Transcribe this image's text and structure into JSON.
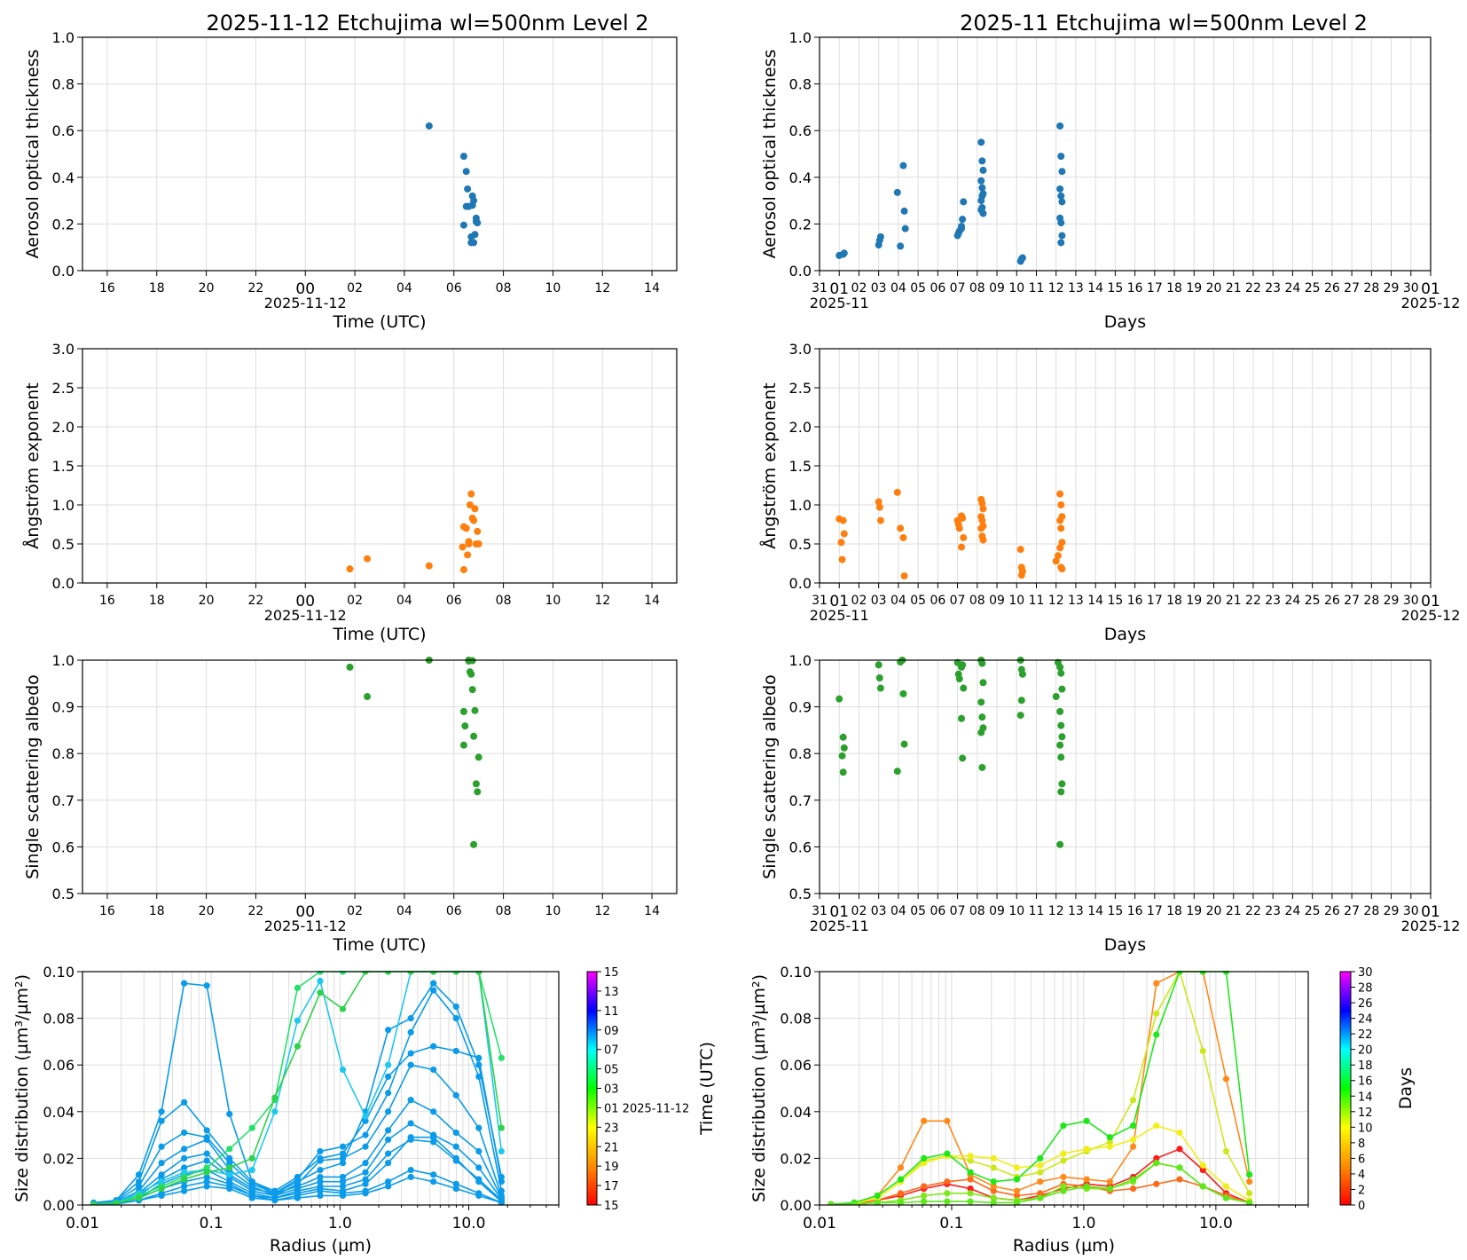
{
  "colors": {
    "aot": "#1f77b4",
    "angstrom": "#ff7f0e",
    "ssa": "#2ca02c"
  },
  "day_panel": {
    "titles": [
      "2025-11-12  Etchujima  wl=500nm  Level 2"
    ],
    "hour_ticks": [
      "16",
      "18",
      "20",
      "22",
      "00",
      "02",
      "04",
      "06",
      "08",
      "10",
      "12",
      "14"
    ],
    "date_label": "2025-11-12",
    "xlabel": "Time (UTC)"
  },
  "month_panel": {
    "titles": [
      "2025-11  Etchujima  wl=500nm  Level 2"
    ],
    "day_ticks": [
      "31",
      "01",
      "02",
      "03",
      "04",
      "05",
      "06",
      "07",
      "08",
      "09",
      "10",
      "11",
      "12",
      "13",
      "14",
      "15",
      "16",
      "17",
      "18",
      "19",
      "20",
      "21",
      "22",
      "23",
      "24",
      "25",
      "26",
      "27",
      "28",
      "29",
      "30",
      "01"
    ],
    "start_label": "2025-11",
    "end_label": "2025-12",
    "xlabel": "Days"
  },
  "chart_data": [
    {
      "id": "day_aot",
      "type": "scatter",
      "ylabel": "Aerosol optical thickness",
      "ylim": [
        0,
        1.0
      ],
      "yticks": [
        "0.0",
        "0.2",
        "0.4",
        "0.6",
        "0.8",
        "1.0"
      ],
      "x_hours_utc": [
        5.0,
        6.4,
        6.5,
        6.55,
        6.6,
        6.7,
        6.75,
        6.8,
        6.85,
        6.9,
        6.95,
        6.7,
        6.8,
        6.5,
        6.4,
        6.9,
        6.75
      ],
      "y": [
        0.62,
        0.49,
        0.425,
        0.35,
        0.275,
        0.12,
        0.32,
        0.3,
        0.155,
        0.225,
        0.205,
        0.145,
        0.12,
        0.275,
        0.195,
        0.21,
        0.28
      ]
    },
    {
      "id": "month_aot",
      "type": "scatter",
      "ylabel": "Aerosol optical thickness",
      "ylim": [
        0,
        1.0
      ],
      "yticks": [
        "0.0",
        "0.2",
        "0.4",
        "0.6",
        "0.8",
        "1.0"
      ],
      "x_day": [
        1.0,
        1.2,
        1.25,
        3.0,
        3.05,
        3.1,
        3.95,
        4.1,
        4.25,
        4.3,
        4.35,
        7.0,
        7.05,
        7.1,
        7.2,
        7.25,
        7.3,
        7.2,
        8.2,
        8.25,
        8.3,
        8.2,
        8.25,
        8.3,
        8.2,
        8.25,
        8.3,
        8.2,
        8.25,
        10.2,
        10.25,
        10.3,
        12.2,
        12.25,
        12.3,
        12.2,
        12.25,
        12.3,
        12.2,
        12.25,
        12.3,
        12.25
      ],
      "y": [
        0.065,
        0.07,
        0.075,
        0.11,
        0.13,
        0.145,
        0.335,
        0.105,
        0.45,
        0.255,
        0.18,
        0.15,
        0.16,
        0.17,
        0.18,
        0.22,
        0.295,
        0.19,
        0.55,
        0.47,
        0.43,
        0.385,
        0.355,
        0.33,
        0.3,
        0.27,
        0.245,
        0.26,
        0.32,
        0.04,
        0.05,
        0.055,
        0.62,
        0.49,
        0.425,
        0.35,
        0.32,
        0.295,
        0.225,
        0.205,
        0.15,
        0.12
      ]
    },
    {
      "id": "day_angstrom",
      "type": "scatter",
      "ylabel": "Ångström exponent",
      "ylim": [
        0,
        3.0
      ],
      "yticks": [
        "0.0",
        "0.5",
        "1.0",
        "1.5",
        "2.0",
        "2.5",
        "3.0"
      ],
      "x_hours_utc": [
        1.8,
        2.5,
        5.0,
        6.35,
        6.4,
        6.5,
        6.55,
        6.6,
        6.65,
        6.7,
        6.75,
        6.8,
        6.85,
        6.9,
        6.95,
        7.0,
        6.4,
        6.6
      ],
      "y": [
        0.18,
        0.31,
        0.22,
        0.46,
        0.72,
        0.7,
        0.36,
        0.53,
        1.0,
        1.14,
        0.83,
        0.8,
        0.95,
        0.5,
        0.66,
        0.5,
        0.17,
        0.5
      ]
    },
    {
      "id": "month_angstrom",
      "type": "scatter",
      "ylabel": "Ångström exponent",
      "ylim": [
        0,
        3.0
      ],
      "yticks": [
        "0.0",
        "0.5",
        "1.0",
        "1.5",
        "2.0",
        "2.5",
        "3.0"
      ],
      "x_day": [
        1.0,
        1.2,
        1.25,
        1.1,
        1.15,
        3.0,
        3.05,
        3.1,
        3.95,
        4.1,
        4.25,
        4.3,
        7.0,
        7.05,
        7.1,
        7.2,
        7.25,
        7.3,
        7.2,
        8.2,
        8.25,
        8.3,
        8.2,
        8.25,
        8.3,
        8.2,
        8.25,
        8.3,
        10.2,
        10.25,
        10.3,
        10.25,
        12.0,
        12.1,
        12.2,
        12.25,
        12.3,
        12.2,
        12.25,
        12.3,
        12.2,
        12.25,
        12.3
      ],
      "y": [
        0.82,
        0.8,
        0.63,
        0.52,
        0.3,
        1.04,
        0.97,
        0.8,
        1.16,
        0.7,
        0.58,
        0.09,
        0.8,
        0.75,
        0.7,
        0.86,
        0.83,
        0.58,
        0.46,
        1.07,
        1.02,
        0.95,
        0.85,
        0.8,
        0.73,
        0.7,
        0.6,
        0.55,
        0.43,
        0.2,
        0.15,
        0.1,
        0.28,
        0.35,
        1.14,
        1.0,
        0.85,
        0.8,
        0.7,
        0.52,
        0.45,
        0.2,
        0.18
      ]
    },
    {
      "id": "day_ssa",
      "type": "scatter",
      "ylabel": "Single scattering albedo",
      "ylim": [
        0.5,
        1.0
      ],
      "yticks": [
        "0.5",
        "0.6",
        "0.7",
        "0.8",
        "0.9",
        "1.0"
      ],
      "x_hours_utc": [
        1.8,
        2.5,
        5.0,
        6.6,
        6.65,
        6.7,
        6.75,
        6.4,
        6.45,
        6.4,
        6.8,
        6.85,
        6.9,
        6.95,
        7.0,
        6.8,
        6.75,
        6.6
      ],
      "y": [
        0.985,
        0.922,
        1.0,
        1.0,
        0.975,
        0.97,
        0.937,
        0.89,
        0.859,
        0.818,
        0.837,
        0.892,
        0.735,
        0.718,
        0.792,
        0.605,
        0.999,
        0.998
      ]
    },
    {
      "id": "month_ssa",
      "type": "scatter",
      "ylabel": "Single scattering albedo",
      "ylim": [
        0.5,
        1.0
      ],
      "yticks": [
        "0.5",
        "0.6",
        "0.7",
        "0.8",
        "0.9",
        "1.0"
      ],
      "x_day": [
        1.0,
        1.2,
        1.25,
        1.15,
        1.2,
        3.0,
        3.05,
        3.1,
        3.95,
        4.1,
        4.25,
        4.3,
        4.2,
        7.0,
        7.05,
        7.1,
        7.2,
        7.25,
        7.3,
        7.2,
        7.25,
        8.2,
        8.25,
        8.3,
        8.2,
        8.25,
        8.3,
        8.2,
        8.25,
        10.2,
        10.25,
        10.3,
        10.25,
        10.2,
        12.0,
        12.1,
        12.2,
        12.25,
        12.3,
        12.2,
        12.25,
        12.3,
        12.2,
        12.25,
        12.3,
        12.25,
        12.2
      ],
      "y": [
        0.917,
        0.835,
        0.812,
        0.795,
        0.76,
        0.99,
        0.962,
        0.94,
        0.762,
        0.996,
        0.928,
        0.82,
        1.0,
        0.995,
        0.97,
        0.96,
        0.985,
        0.99,
        0.94,
        0.875,
        0.79,
        1.0,
        0.993,
        0.952,
        0.91,
        0.878,
        0.855,
        0.845,
        0.77,
        1.0,
        0.98,
        0.97,
        0.914,
        0.882,
        0.922,
        0.995,
        0.985,
        0.972,
        0.938,
        0.89,
        0.86,
        0.836,
        0.818,
        0.792,
        0.735,
        0.718,
        0.605
      ]
    },
    {
      "id": "day_size_dist",
      "type": "line",
      "xscale": "log",
      "xlim": [
        0.01,
        50
      ],
      "ylim": [
        0,
        0.1
      ],
      "xlabel": "Radius (µm)",
      "ylabel": "Size distribution (µm³/µm²)",
      "xticks": [
        "0.01",
        "0.1",
        "1.0",
        "10.0"
      ],
      "yticks": [
        "0.00",
        "0.02",
        "0.04",
        "0.06",
        "0.08",
        "0.10"
      ],
      "colorbar": {
        "label": "Time (UTC)",
        "ticks": [
          "15",
          "17",
          "19",
          "21",
          "23",
          "01 2025-11-12",
          "03",
          "05",
          "07",
          "09",
          "11",
          "13",
          "15"
        ]
      },
      "radius": [
        0.0122,
        0.0183,
        0.0274,
        0.0411,
        0.0616,
        0.0924,
        0.1386,
        0.2078,
        0.3117,
        0.4674,
        0.701,
        1.0513,
        1.5767,
        2.3646,
        3.5462,
        5.3183,
        7.9759,
        11.9614,
        17.9383
      ],
      "series": [
        {
          "color": "#0a9bea",
          "values": [
            0.001,
            0.002,
            0.013,
            0.04,
            0.095,
            0.094,
            0.039,
            0.01,
            0.005,
            0.01,
            0.015,
            0.018,
            0.04,
            0.075,
            0.08,
            0.095,
            0.085,
            0.06,
            0.012
          ]
        },
        {
          "color": "#0a9bea",
          "values": [
            0.0005,
            0.002,
            0.01,
            0.036,
            0.044,
            0.032,
            0.02,
            0.01,
            0.006,
            0.012,
            0.02,
            0.022,
            0.036,
            0.055,
            0.065,
            0.068,
            0.066,
            0.063,
            0.01
          ]
        },
        {
          "color": "#0a9bea",
          "values": [
            0.0005,
            0.0015,
            0.008,
            0.025,
            0.031,
            0.029,
            0.018,
            0.009,
            0.005,
            0.011,
            0.023,
            0.025,
            0.03,
            0.048,
            0.074,
            0.092,
            0.08,
            0.055,
            0.006
          ]
        },
        {
          "color": "#0a9bea",
          "values": [
            0.0004,
            0.0012,
            0.006,
            0.018,
            0.024,
            0.028,
            0.015,
            0.008,
            0.004,
            0.009,
            0.019,
            0.02,
            0.025,
            0.04,
            0.06,
            0.058,
            0.047,
            0.033,
            0.004
          ]
        },
        {
          "color": "#0a9bea",
          "values": [
            0.0003,
            0.001,
            0.005,
            0.013,
            0.02,
            0.022,
            0.013,
            0.007,
            0.005,
            0.008,
            0.012,
            0.012,
            0.018,
            0.032,
            0.045,
            0.04,
            0.031,
            0.023,
            0.003
          ]
        },
        {
          "color": "#0a9bea",
          "values": [
            0.0003,
            0.001,
            0.004,
            0.011,
            0.016,
            0.019,
            0.012,
            0.006,
            0.004,
            0.007,
            0.01,
            0.01,
            0.014,
            0.028,
            0.035,
            0.03,
            0.025,
            0.016,
            0.0025
          ]
        },
        {
          "color": "#0a9bea",
          "values": [
            0.0002,
            0.0008,
            0.003,
            0.009,
            0.013,
            0.015,
            0.01,
            0.005,
            0.003,
            0.006,
            0.008,
            0.008,
            0.011,
            0.022,
            0.028,
            0.027,
            0.019,
            0.011,
            0.002
          ]
        },
        {
          "color": "#0a9bea",
          "values": [
            0.0002,
            0.0006,
            0.003,
            0.007,
            0.01,
            0.012,
            0.009,
            0.004,
            0.003,
            0.005,
            0.007,
            0.006,
            0.009,
            0.018,
            0.029,
            0.029,
            0.02,
            0.01,
            0.0015
          ]
        },
        {
          "color": "#0a9bea",
          "values": [
            0.0002,
            0.0005,
            0.002,
            0.005,
            0.008,
            0.01,
            0.008,
            0.004,
            0.002,
            0.004,
            0.006,
            0.005,
            0.006,
            0.01,
            0.015,
            0.013,
            0.009,
            0.005,
            0.001
          ]
        },
        {
          "color": "#0a9bea",
          "values": [
            0.0001,
            0.0004,
            0.002,
            0.004,
            0.006,
            0.008,
            0.007,
            0.003,
            0.002,
            0.003,
            0.004,
            0.004,
            0.005,
            0.008,
            0.012,
            0.01,
            0.007,
            0.004,
            0.001
          ]
        },
        {
          "color": "#1ec8ee",
          "values": [
            0.0003,
            0.001,
            0.005,
            0.01,
            0.014,
            0.015,
            0.013,
            0.015,
            0.04,
            0.079,
            0.096,
            0.058,
            0.038,
            0.06,
            0.1,
            0.1,
            0.1,
            0.1,
            0.023
          ]
        },
        {
          "color": "#24e06c",
          "values": [
            0.0002,
            0.0008,
            0.004,
            0.008,
            0.012,
            0.016,
            0.024,
            0.033,
            0.045,
            0.093,
            0.1,
            0.1,
            0.1,
            0.1,
            0.1,
            0.1,
            0.1,
            0.1,
            0.063
          ]
        },
        {
          "color": "#2fd24a",
          "values": [
            0.0002,
            0.0008,
            0.003,
            0.007,
            0.011,
            0.014,
            0.016,
            0.02,
            0.046,
            0.068,
            0.091,
            0.084,
            0.1,
            0.1,
            0.1,
            0.1,
            0.1,
            0.1,
            0.033
          ]
        }
      ]
    },
    {
      "id": "month_size_dist",
      "type": "line",
      "xscale": "log",
      "xlim": [
        0.01,
        50
      ],
      "ylim": [
        0,
        0.1
      ],
      "xlabel": "Radius (µm)",
      "ylabel": "Size distribution (µm³/µm²)",
      "xticks": [
        "0.01",
        "0.1",
        "1.0",
        "10.0"
      ],
      "yticks": [
        "0.00",
        "0.02",
        "0.04",
        "0.06",
        "0.08",
        "0.10"
      ],
      "colorbar": {
        "label": "Days",
        "ticks": [
          "0",
          "2",
          "4",
          "6",
          "8",
          "10",
          "12",
          "14",
          "16",
          "18",
          "20",
          "22",
          "24",
          "26",
          "28",
          "30"
        ]
      },
      "radius": [
        0.0122,
        0.0183,
        0.0274,
        0.0411,
        0.0616,
        0.0924,
        0.1386,
        0.2078,
        0.3117,
        0.4674,
        0.701,
        1.0513,
        1.5767,
        2.3646,
        3.5462,
        5.3183,
        7.9759,
        11.9614,
        17.9383
      ],
      "series": [
        {
          "day": 1,
          "color": "#ff1a1a",
          "values": [
            0.0002,
            0.0006,
            0.002,
            0.004,
            0.007,
            0.009,
            0.007,
            0.003,
            0.002,
            0.004,
            0.007,
            0.009,
            0.008,
            0.012,
            0.02,
            0.024,
            0.015,
            0.005,
            0.001
          ]
        },
        {
          "day": 3,
          "color": "#ff6a1a",
          "values": [
            0.0002,
            0.0005,
            0.002,
            0.005,
            0.008,
            0.01,
            0.011,
            0.006,
            0.004,
            0.005,
            0.009,
            0.008,
            0.006,
            0.007,
            0.009,
            0.011,
            0.008,
            0.004,
            0.001
          ]
        },
        {
          "day": 4,
          "color": "#ff8a1a",
          "values": [
            0.0003,
            0.001,
            0.004,
            0.016,
            0.036,
            0.036,
            0.013,
            0.008,
            0.006,
            0.01,
            0.012,
            0.011,
            0.01,
            0.025,
            0.095,
            0.1,
            0.1,
            0.054,
            0.01
          ]
        },
        {
          "day": 7,
          "color": "#cde81a",
          "values": [
            0.0002,
            0.0006,
            0.003,
            0.01,
            0.019,
            0.021,
            0.019,
            0.016,
            0.012,
            0.014,
            0.019,
            0.023,
            0.027,
            0.045,
            0.082,
            0.1,
            0.066,
            0.023,
            0.005
          ]
        },
        {
          "day": 8,
          "color": "#f2ee1a",
          "values": [
            0.0002,
            0.0006,
            0.003,
            0.01,
            0.018,
            0.021,
            0.021,
            0.02,
            0.016,
            0.017,
            0.022,
            0.024,
            0.025,
            0.028,
            0.034,
            0.031,
            0.017,
            0.008,
            0.002
          ]
        },
        {
          "day": 10,
          "color": "#7ee81a",
          "values": [
            0.0001,
            0.0002,
            0.001,
            0.002,
            0.004,
            0.005,
            0.005,
            0.003,
            0.002,
            0.003,
            0.008,
            0.007,
            0.007,
            0.01,
            0.018,
            0.016,
            0.008,
            0.003,
            0.001
          ]
        },
        {
          "day": 12,
          "color": "#1ee81a",
          "values": [
            0.0003,
            0.001,
            0.004,
            0.011,
            0.02,
            0.022,
            0.014,
            0.01,
            0.011,
            0.02,
            0.034,
            0.036,
            0.029,
            0.034,
            0.073,
            0.1,
            0.1,
            0.1,
            0.013
          ]
        },
        {
          "day": 11,
          "color": "#5ee81a",
          "values": [
            0.0001,
            0.0003,
            0.001,
            0.001,
            0.0015,
            0.0015,
            0.0015,
            0.001,
            0.001,
            0.003,
            0.006,
            0.008,
            0.007,
            0.011,
            0.018,
            0.016,
            0.008,
            0.003,
            0.001
          ]
        }
      ]
    }
  ]
}
